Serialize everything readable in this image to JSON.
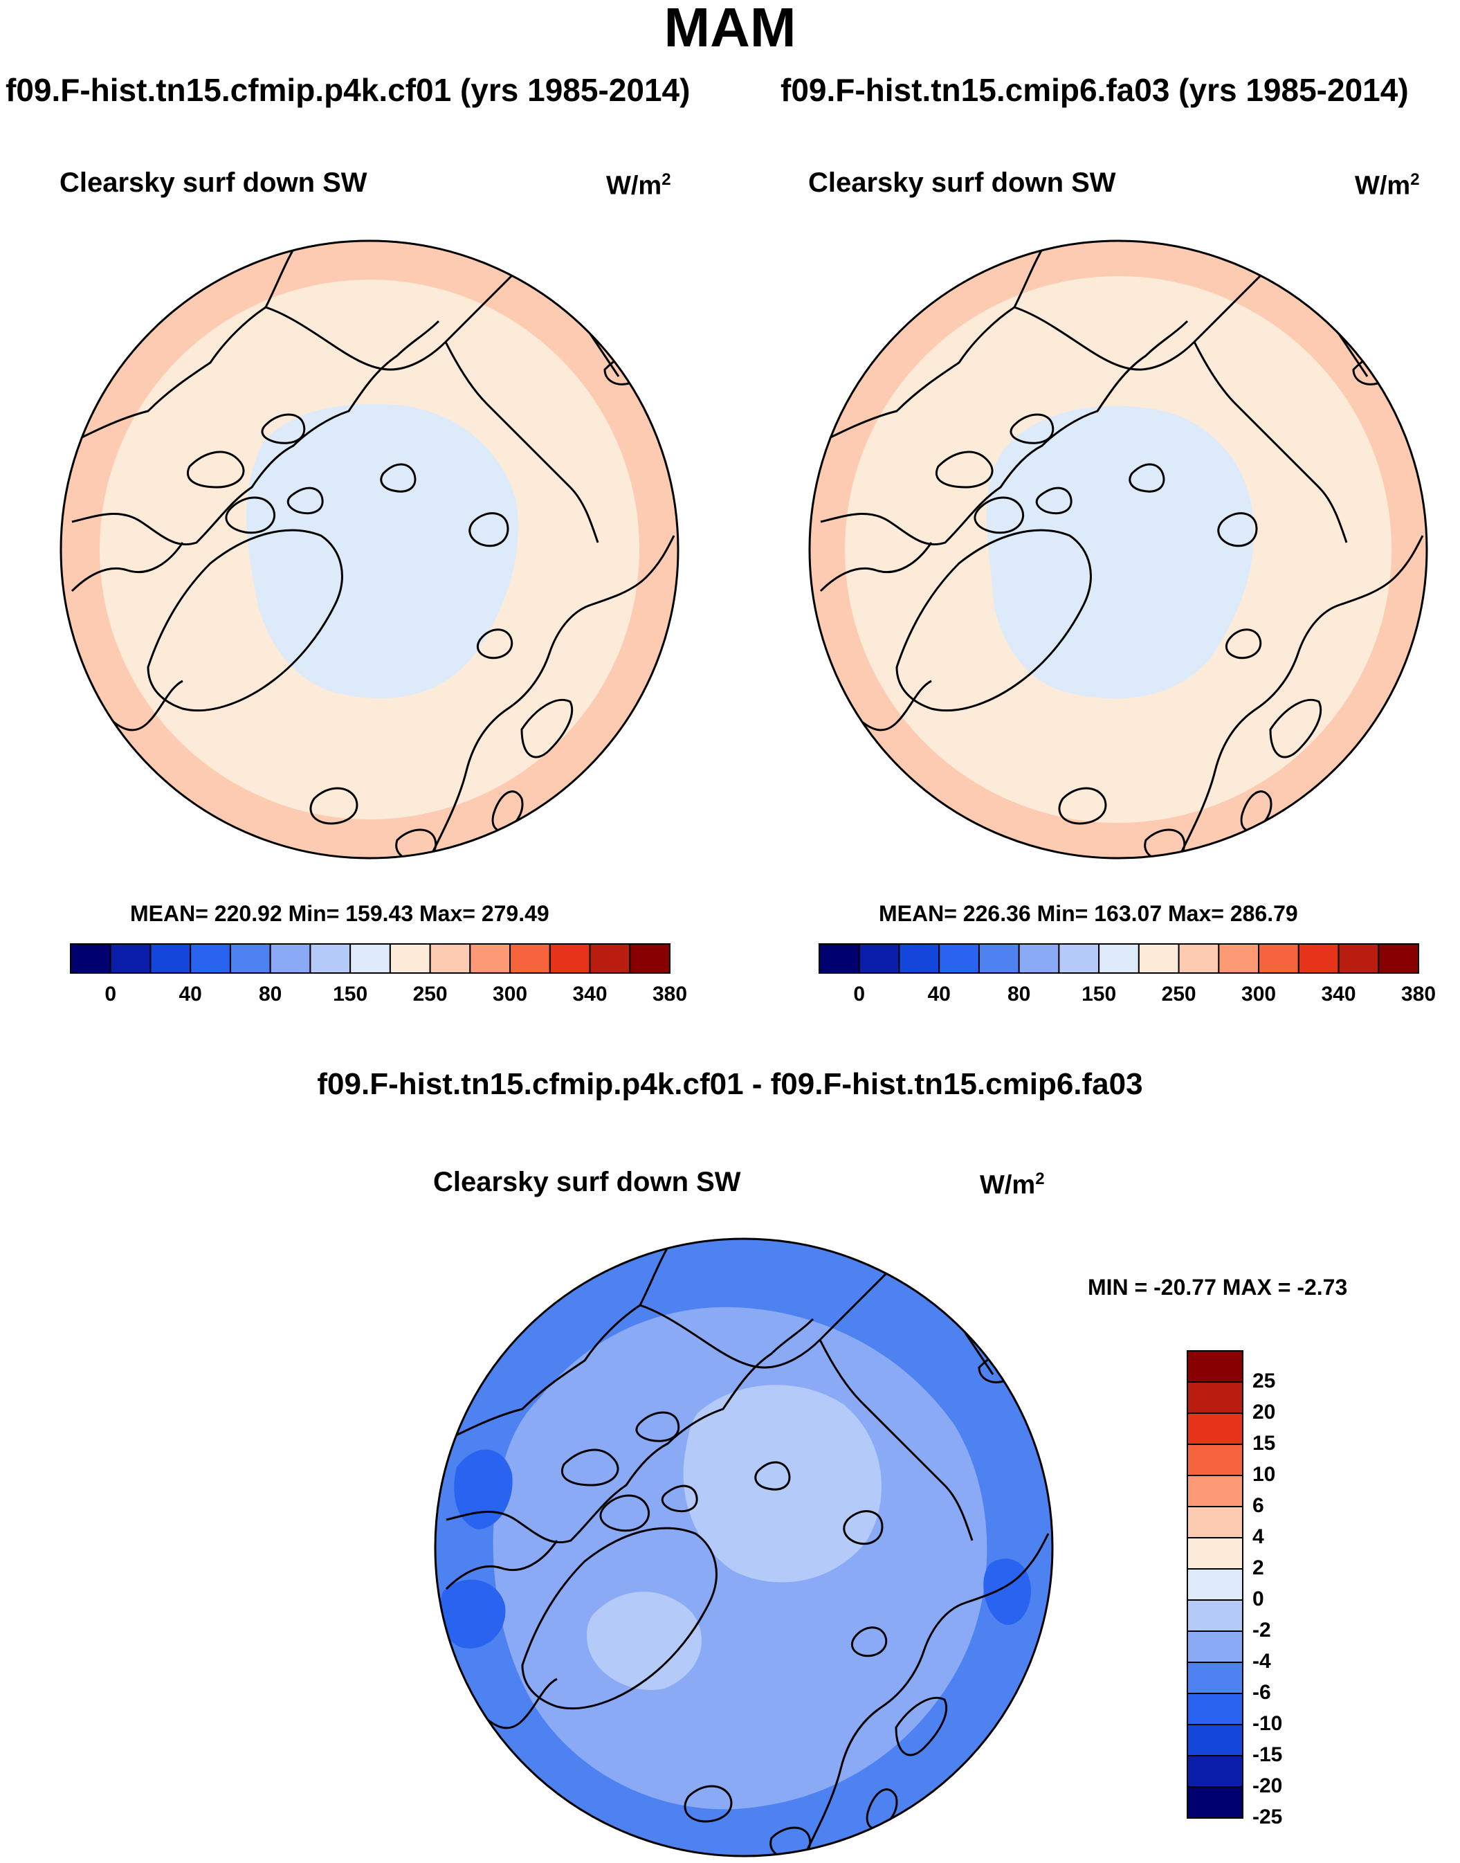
{
  "title": "MAM",
  "panels": [
    {
      "case_title": "f09.F-hist.tn15.cfmip.p4k.cf01 (yrs 1985-2014)",
      "variable": "Clearsky surf down SW",
      "units": "W/m",
      "units_sup": "2",
      "stats": "MEAN= 220.92  Min= 159.43  Max= 279.49",
      "colorbar_labels": [
        "0",
        "40",
        "80",
        "150",
        "250",
        "300",
        "340",
        "380"
      ]
    },
    {
      "case_title": "f09.F-hist.tn15.cmip6.fa03 (yrs 1985-2014)",
      "variable": "Clearsky surf down SW",
      "units": "W/m",
      "units_sup": "2",
      "stats": "MEAN= 226.36  Min= 163.07  Max= 286.79",
      "colorbar_labels": [
        "0",
        "40",
        "80",
        "150",
        "250",
        "300",
        "340",
        "380"
      ]
    }
  ],
  "diff_panel": {
    "title": "f09.F-hist.tn15.cfmip.p4k.cf01 - f09.F-hist.tn15.cmip6.fa03",
    "variable": "Clearsky surf down SW",
    "units": "W/m",
    "units_sup": "2",
    "stats": "MIN = -20.77 MAX =  -2.73",
    "colorbar_labels": [
      "25",
      "20",
      "15",
      "10",
      "6",
      "4",
      "2",
      "0",
      "-2",
      "-4",
      "-6",
      "-10",
      "-15",
      "-20",
      "-25"
    ]
  },
  "colors": {
    "colorbar": [
      "#00006e",
      "#0a1eaa",
      "#1446dc",
      "#2864f0",
      "#4e82f0",
      "#8aaaf5",
      "#b4caf8",
      "#dceafa",
      "#fdebd9",
      "#fccbb1",
      "#fb9a74",
      "#f5643c",
      "#e6341a",
      "#b91e10",
      "#880000"
    ],
    "diff_colorbar": [
      "#880000",
      "#b91e10",
      "#e6341a",
      "#f5643c",
      "#fb9a74",
      "#fccbb1",
      "#fdebd9",
      "#dceafa",
      "#b4caf8",
      "#8aaaf5",
      "#4e82f0",
      "#2864f0",
      "#1446dc",
      "#0a1eaa",
      "#00006e"
    ]
  }
}
